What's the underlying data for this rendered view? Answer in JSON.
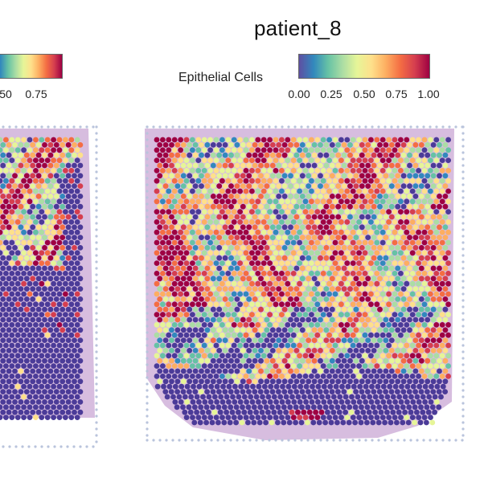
{
  "right_panel": {
    "title": "patient_8",
    "legend_label": "Epithelial Cells",
    "ticks": [
      "0.00",
      "0.25",
      "0.50",
      "0.75",
      "1.00"
    ]
  },
  "left_panel": {
    "ticks": [
      "50",
      "0.75"
    ]
  },
  "colors": {
    "scale": [
      "#5e4fa2",
      "#3288bd",
      "#66c2a5",
      "#abdda4",
      "#e6f598",
      "#fee08b",
      "#fdae61",
      "#f46d43",
      "#d53e4f",
      "#9e0142"
    ],
    "low_spot": "#4b3b98",
    "tissue": "#c9a7d4",
    "grid_dot": "#b9c4dc"
  }
}
